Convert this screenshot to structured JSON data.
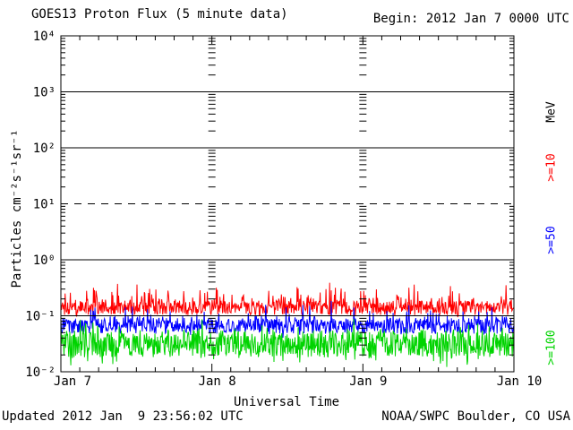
{
  "header": {
    "title": "GOES13 Proton Flux (5 minute data)",
    "begin_label": "Begin: 2012 Jan 7 0000 UTC"
  },
  "footer": {
    "updated": "Updated 2012 Jan  9 23:56:02 UTC",
    "source": "NOAA/SWPC Boulder, CO USA"
  },
  "chart_data": {
    "type": "line",
    "title": "GOES13 Proton Flux (5 minute data)",
    "subtitle": "Begin: 2012 Jan 7 0000 UTC",
    "xlabel": "Universal Time",
    "ylabel": "Particles cm⁻²s⁻¹sr⁻¹",
    "y_scale": "log",
    "ylim": [
      0.01,
      10000
    ],
    "y_tick_labels": [
      "10⁴",
      "10³",
      "10²",
      "10¹",
      "10⁰",
      "10⁻¹",
      "10⁻²"
    ],
    "y_tick_exponents": [
      4,
      3,
      2,
      1,
      0,
      -1,
      -2
    ],
    "x_range_days": 3,
    "x_start_utc": "2012 Jan 7 0000 UTC",
    "x_end_utc": "2012 Jan 10 0000 UTC",
    "x_tick_labels": [
      "Jan 7",
      "Jan 8",
      "Jan 9",
      "Jan 10"
    ],
    "x_minor_tick_hours": 3,
    "cadence_minutes": 5,
    "samples": 864,
    "grid": {
      "solid_decades": [
        3,
        2,
        0,
        -1
      ],
      "dashed_decades": [
        1
      ],
      "day_tick_columns_at_day": [
        1,
        2
      ]
    },
    "legend": {
      "unit_label": "MeV"
    },
    "series": [
      {
        "name": ">=10 MeV",
        "label": ">=10",
        "color": "#ff0000",
        "typical_flux": 0.15,
        "approx_flux_range": [
          0.09,
          0.45
        ],
        "gen": {
          "base_log10": -0.86,
          "jitter_log10": 0.13,
          "spike_prob": 0.3,
          "spike_log10": 0.42,
          "dip_prob": 0.1,
          "dip_log10": 0.1,
          "floor_log10": -1.04
        }
      },
      {
        "name": ">=50 MeV",
        "label": ">=50",
        "color": "#0000ff",
        "typical_flux": 0.07,
        "approx_flux_range": [
          0.03,
          0.2
        ],
        "gen": {
          "base_log10": -1.18,
          "jitter_log10": 0.14,
          "spike_prob": 0.22,
          "spike_log10": 0.4,
          "dip_prob": 0.12,
          "dip_log10": 0.14,
          "floor_log10": -1.42
        }
      },
      {
        "name": ">=100 MeV",
        "label": ">=100",
        "color": "#00d400",
        "typical_flux": 0.035,
        "approx_flux_range": [
          0.012,
          0.1
        ],
        "gen": {
          "base_log10": -1.5,
          "jitter_log10": 0.24,
          "spike_prob": 0.22,
          "spike_log10": 0.42,
          "dip_prob": 0.2,
          "dip_log10": 0.28,
          "floor_log10": -1.95
        }
      }
    ],
    "generator_seed": 20120107
  }
}
